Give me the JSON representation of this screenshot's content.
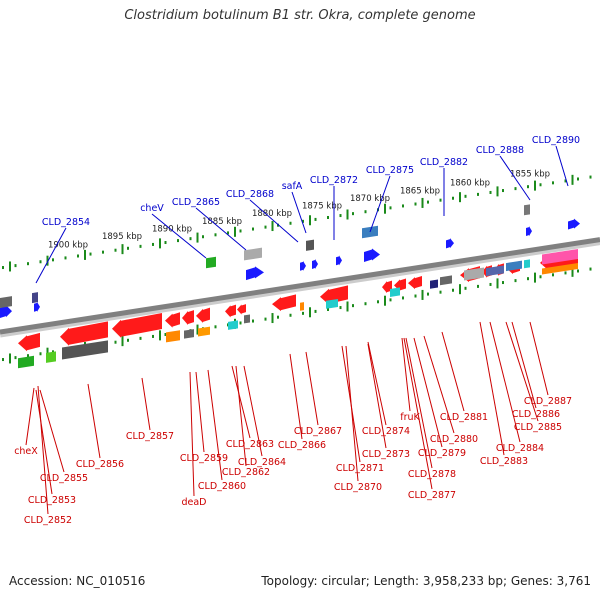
{
  "header": {
    "title": "Clostridium botulinum B1 str. Okra, complete genome"
  },
  "footer": {
    "accession": "Accession: NC_010516",
    "summary": "Topology: circular; Length: 3,958,233 bp; Genes: 3,761"
  },
  "colors": {
    "forward_gene": "#ff1a1a",
    "reverse_gene": "#1a1aff",
    "backbone": "#808080",
    "tick": "#1a8a1a",
    "label_top": "#0000cc",
    "label_bottom": "#cc0000"
  },
  "scale": {
    "ticks": [
      "1900 kbp",
      "1895 kbp",
      "1890 kbp",
      "1885 kbp",
      "1880 kbp",
      "1875 kbp",
      "1870 kbp",
      "1865 kbp",
      "1860 kbp",
      "1855 kbp"
    ]
  },
  "genes_top": [
    "CLD_2854",
    "cheV",
    "CLD_2865",
    "CLD_2868",
    "safA",
    "CLD_2872",
    "CLD_2875",
    "CLD_2882",
    "CLD_2888",
    "CLD_2890"
  ],
  "genes_bottom": [
    "cheX",
    "CLD_2855",
    "CLD_2853",
    "CLD_2852",
    "CLD_2856",
    "CLD_2857",
    "deaD",
    "CLD_2859",
    "CLD_2860",
    "CLD_2862",
    "CLD_2863",
    "CLD_2864",
    "CLD_2866",
    "CLD_2867",
    "CLD_2870",
    "CLD_2871",
    "CLD_2873",
    "CLD_2874",
    "fruK",
    "CLD_2877",
    "CLD_2878",
    "CLD_2879",
    "CLD_2880",
    "CLD_2881",
    "CLD_2883",
    "CLD_2884",
    "CLD_2885",
    "CLD_2886",
    "CLD_2887"
  ]
}
